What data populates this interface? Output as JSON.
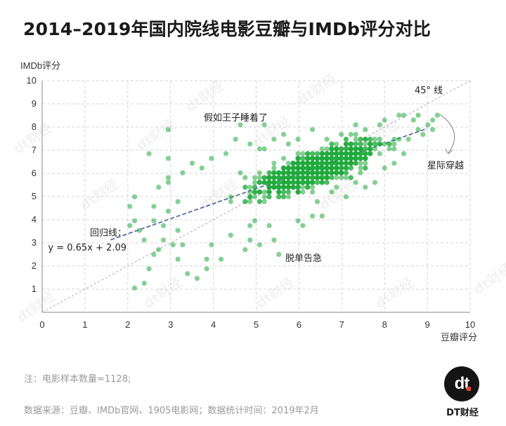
{
  "title": "2014–2019年国内院线电影豆瓣与IMDb评分对比",
  "note": "注：电影样本数量=1128;",
  "source": "数据来源：豆瓣、IMDb官网、1905电影网；数据统计时间：2019年2月",
  "brand": {
    "name": "DT财经",
    "logo_text": "dt",
    "watermark": "dt财经",
    "logo_accent": "#e8462b"
  },
  "colors": {
    "point": "#1faa3c",
    "grid": "#d6d6d6",
    "axis": "#888888",
    "regression_line": "#5a6e9a",
    "diag_line": "#aaaaaa"
  },
  "chart_data": {
    "type": "scatter",
    "title": "2014–2019年国内院线电影豆瓣与IMDb评分对比",
    "xlabel": "豆瓣评分",
    "ylabel": "IMDb评分",
    "xlim": [
      0,
      10
    ],
    "ylim": [
      0,
      10
    ],
    "xticks": [
      0,
      1,
      2,
      3,
      4,
      5,
      6,
      7,
      8,
      9,
      10
    ],
    "yticks": [
      1,
      2,
      3,
      4,
      5,
      6,
      7,
      8,
      9,
      10
    ],
    "grid": true,
    "sample_size": 1128,
    "regression": {
      "slope": 0.65,
      "intercept": 2.09,
      "x_range": [
        1.6,
        9.0
      ]
    },
    "reference_line": {
      "slope": 1,
      "intercept": 0
    },
    "highlights": [
      {
        "label": "假如王子睡着了",
        "x": 4.7,
        "y": 8.1
      },
      {
        "label": "星际穿越",
        "x": 9.2,
        "y": 8.6
      },
      {
        "label": "脱单告急",
        "x": 5.6,
        "y": 2.5
      }
    ],
    "annotations": {
      "diag": "45° 线",
      "regression_label": "回归线：",
      "regression_eq": "y = 0.65x + 2.09"
    },
    "points": [
      [
        2.9,
        7.9
      ],
      [
        2.5,
        6.9
      ],
      [
        2.2,
        1.1
      ],
      [
        2.4,
        1.2
      ],
      [
        2.5,
        1.8
      ],
      [
        2.1,
        4.5
      ],
      [
        3.4,
        1.6
      ],
      [
        3.6,
        1.4
      ],
      [
        3.3,
        2.9
      ],
      [
        3.9,
        2.2
      ],
      [
        3.8,
        1.9
      ],
      [
        2.8,
        3.2
      ],
      [
        2.7,
        2.8
      ],
      [
        3.2,
        3.5
      ],
      [
        2.6,
        2.5
      ],
      [
        4.9,
        3.7
      ],
      [
        4.6,
        8.1
      ],
      [
        5.5,
        2.6
      ],
      [
        4.7,
        2.7
      ],
      [
        4.2,
        2.3
      ],
      [
        3.2,
        2.2
      ],
      [
        2.3,
        3.6
      ],
      [
        2.6,
        4.0
      ],
      [
        5.4,
        3.2
      ],
      [
        6.0,
        3.9
      ],
      [
        6.3,
        4.2
      ],
      [
        2.2,
        5.0
      ],
      [
        2.9,
        6.6
      ],
      [
        3.5,
        6.5
      ],
      [
        4.5,
        7.4
      ],
      [
        5.1,
        7.0
      ],
      [
        9.2,
        8.6
      ],
      [
        9.1,
        8.3
      ],
      [
        8.8,
        8.6
      ],
      [
        2.65,
        4.6
      ],
      [
        2.35,
        3.2
      ],
      [
        2.85,
        3.75
      ],
      [
        3.0,
        4.3
      ],
      [
        3.15,
        4.7
      ],
      [
        3.1,
        3.0
      ],
      [
        2.7,
        5.4
      ],
      [
        3.0,
        5.8
      ],
      [
        4.0,
        3.0
      ],
      [
        4.4,
        3.3
      ],
      [
        4.8,
        3.1
      ],
      [
        5.0,
        4.0
      ],
      [
        5.3,
        3.8
      ],
      [
        5.1,
        2.9
      ],
      [
        6.1,
        3.7
      ],
      [
        6.5,
        4.1
      ],
      [
        6.4,
        4.8
      ],
      [
        6.8,
        5.1
      ],
      [
        6.9,
        5.3
      ],
      [
        7.3,
        5.6
      ],
      [
        7.1,
        4.9
      ],
      [
        7.6,
        5.3
      ],
      [
        7.8,
        5.7
      ],
      [
        8.0,
        6.2
      ],
      [
        8.2,
        6.4
      ],
      [
        8.4,
        6.8
      ],
      [
        8.6,
        7.5
      ],
      [
        8.9,
        7.7
      ],
      [
        9.0,
        8.1
      ],
      [
        8.7,
        8.3
      ],
      [
        8.5,
        8.5
      ],
      [
        8.3,
        8.5
      ],
      [
        8.0,
        8.4
      ],
      [
        7.9,
        8.0
      ],
      [
        7.5,
        7.9
      ],
      [
        7.3,
        8.1
      ],
      [
        7.0,
        7.6
      ],
      [
        6.7,
        7.5
      ],
      [
        6.3,
        7.8
      ],
      [
        6.0,
        7.4
      ],
      [
        5.6,
        7.6
      ],
      [
        5.4,
        7.4
      ],
      [
        5.2,
        7.1
      ],
      [
        4.9,
        7.3
      ],
      [
        4.3,
        6.9
      ],
      [
        4.0,
        6.6
      ],
      [
        3.7,
        6.3
      ],
      [
        3.3,
        6.1
      ],
      [
        3.0,
        5.6
      ],
      [
        5.2,
        8.0
      ],
      [
        5.8,
        7.2
      ],
      [
        6.5,
        6.9
      ],
      [
        7.2,
        7.3
      ],
      [
        7.7,
        7.5
      ],
      [
        8.1,
        7.3
      ],
      [
        8.3,
        7.4
      ],
      [
        8.8,
        7.9
      ],
      [
        9.1,
        7.8
      ],
      [
        2.2,
        3.9
      ],
      [
        2.0,
        3.7
      ]
    ]
  }
}
